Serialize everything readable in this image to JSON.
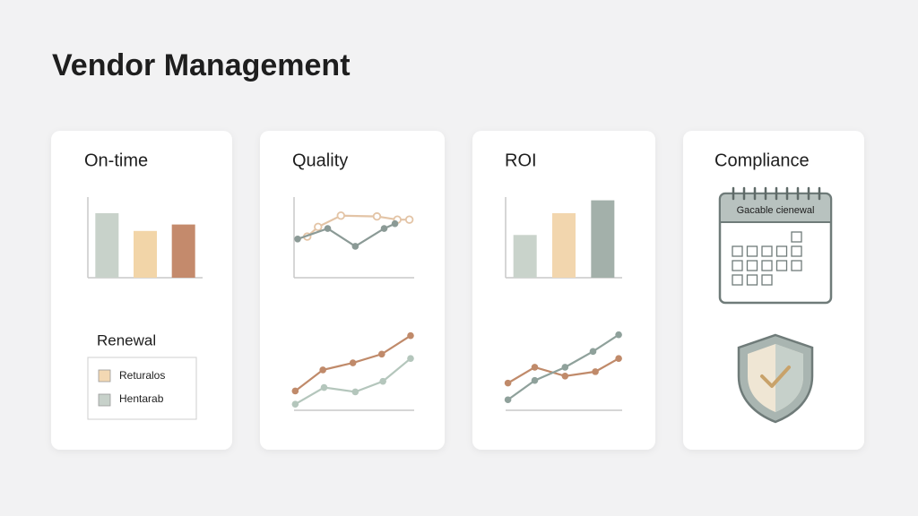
{
  "title": "Vendor Management",
  "cards": [
    "On-time",
    "Quality",
    "ROI",
    "Compliance"
  ],
  "legend": {
    "title": "Renewal",
    "items": [
      {
        "label": "Returalos",
        "color": "#f3d8b3"
      },
      {
        "label": "Hentarab",
        "color": "#c7d1ca"
      }
    ]
  },
  "calendar": {
    "title": "Gacable cienewal"
  },
  "chart_data": [
    {
      "type": "bar",
      "categories": [
        null,
        null,
        null
      ],
      "values": [
        80,
        58,
        66
      ],
      "colors": [
        "#c8d2ca",
        "#f2d5a8",
        "#c48a6c"
      ],
      "ylim": [
        0,
        100
      ],
      "axis_lines": [
        "left",
        "bottom"
      ]
    },
    {
      "type": "line",
      "xlim": [
        0,
        10
      ],
      "ylim": [
        0,
        100
      ],
      "axis_lines": [
        "left",
        "bottom"
      ],
      "series": [
        {
          "color": "#e3c4a6",
          "markers": "hollow",
          "x": [
            1.1,
            2.0,
            3.9,
            6.9,
            8.6,
            9.6
          ],
          "values": [
            51,
            63,
            77,
            76,
            72,
            72
          ]
        },
        {
          "color": "#8b9a96",
          "markers": "filled",
          "x": [
            0.3,
            2.8,
            5.1,
            7.5,
            8.4
          ],
          "values": [
            48,
            61,
            39,
            61,
            67
          ]
        }
      ]
    },
    {
      "type": "line",
      "xlim": [
        0,
        10
      ],
      "ylim": [
        0,
        100
      ],
      "axis_lines": [
        "bottom"
      ],
      "series": [
        {
          "color": "#c08a6a",
          "markers": "filled",
          "x": [
            0.1,
            2.4,
            4.9,
            7.3,
            9.7
          ],
          "values": [
            22,
            46,
            54,
            64,
            85
          ]
        },
        {
          "color": "#b4c6bc",
          "markers": "filled",
          "x": [
            0.1,
            2.5,
            5.1,
            7.4,
            9.7
          ],
          "values": [
            7,
            26,
            21,
            33,
            59
          ]
        }
      ]
    },
    {
      "type": "bar",
      "categories": [
        null,
        null,
        null
      ],
      "values": [
        53,
        80,
        96
      ],
      "colors": [
        "#c9d3cb",
        "#f2d6ae",
        "#a3b0aa"
      ],
      "ylim": [
        0,
        100
      ],
      "axis_lines": [
        "left",
        "bottom"
      ]
    },
    {
      "type": "line",
      "xlim": [
        0,
        10
      ],
      "ylim": [
        0,
        100
      ],
      "axis_lines": [
        "bottom"
      ],
      "series": [
        {
          "color": "#c08a6a",
          "markers": "filled",
          "x": [
            0.2,
            2.5,
            5.1,
            7.7,
            9.7
          ],
          "values": [
            31,
            49,
            39,
            44,
            59
          ]
        },
        {
          "color": "#8fa19b",
          "markers": "filled",
          "x": [
            0.2,
            2.5,
            5.1,
            7.5,
            9.7
          ],
          "values": [
            12,
            34,
            49,
            67,
            86
          ]
        }
      ]
    }
  ]
}
